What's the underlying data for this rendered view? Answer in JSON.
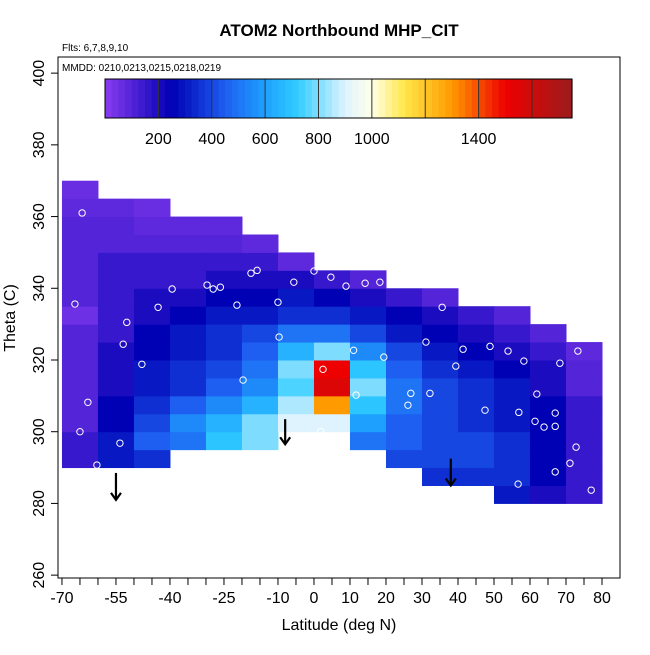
{
  "chart_data": {
    "type": "heatmap",
    "title": "ATOM2 Northbound MHP_CIT",
    "subtitle": "Flts: 6,7,8,9,10",
    "annotation": "MMDD: 0210,0213,0215,0218,0219",
    "x_label": "Latitude (deg N)",
    "y_label": "Theta (C)",
    "xlim": [
      -71.1,
      85
    ],
    "ylim": [
      259.2,
      404.5
    ],
    "xticks": [
      -70,
      -55,
      -40,
      -25,
      -10,
      0,
      10,
      20,
      30,
      40,
      50,
      60,
      70,
      80
    ],
    "xminor_ticks": [
      -65,
      -60,
      -50,
      -45,
      -35,
      -30,
      -20,
      -15,
      -5,
      5,
      15,
      25,
      35,
      45,
      55,
      65,
      75
    ],
    "yticks": [
      260,
      280,
      300,
      320,
      340,
      360,
      380,
      400
    ],
    "x": [
      -70,
      -60,
      -50,
      -40,
      -30,
      -20,
      -10,
      0,
      10,
      20,
      30,
      40,
      50,
      60,
      70,
      80
    ],
    "y": [
      280,
      285,
      290,
      295,
      300,
      305,
      310,
      315,
      320,
      325,
      330,
      335,
      340,
      345,
      350,
      355,
      360,
      365,
      370
    ],
    "z": [
      [
        null,
        null,
        null,
        null,
        null,
        null,
        null,
        null,
        null,
        null,
        null,
        null,
        300,
        200,
        150
      ],
      [
        null,
        null,
        null,
        null,
        null,
        null,
        null,
        null,
        null,
        null,
        350,
        350,
        350,
        250,
        150
      ],
      [
        150,
        300,
        350,
        null,
        null,
        null,
        null,
        null,
        null,
        400,
        400,
        400,
        350,
        250,
        150
      ],
      [
        150,
        300,
        450,
        500,
        700,
        800,
        null,
        null,
        500,
        450,
        400,
        400,
        350,
        250,
        150
      ],
      [
        100,
        250,
        400,
        550,
        650,
        800,
        900,
        900,
        600,
        450,
        400,
        350,
        300,
        250,
        150
      ],
      [
        100,
        250,
        350,
        450,
        550,
        650,
        850,
        1300,
        700,
        500,
        400,
        350,
        300,
        250,
        150
      ],
      [
        100,
        200,
        300,
        350,
        450,
        550,
        750,
        1550,
        800,
        500,
        400,
        350,
        300,
        200,
        100
      ],
      [
        100,
        200,
        300,
        350,
        400,
        500,
        800,
        1500,
        700,
        450,
        350,
        300,
        250,
        200,
        100
      ],
      [
        100,
        200,
        250,
        300,
        350,
        450,
        650,
        800,
        550,
        400,
        300,
        250,
        200,
        150,
        80
      ],
      [
        100,
        150,
        250,
        300,
        350,
        400,
        500,
        500,
        400,
        300,
        250,
        200,
        150,
        100,
        null
      ],
      [
        50,
        150,
        200,
        250,
        300,
        300,
        350,
        350,
        300,
        250,
        200,
        150,
        100,
        null,
        null
      ],
      [
        100,
        150,
        200,
        200,
        250,
        250,
        300,
        250,
        200,
        150,
        100,
        null,
        null,
        null,
        null
      ],
      [
        100,
        150,
        150,
        150,
        200,
        200,
        200,
        150,
        100,
        null,
        null,
        null,
        null,
        null,
        null
      ],
      [
        100,
        150,
        150,
        150,
        150,
        150,
        80,
        null,
        null,
        null,
        null,
        null,
        null,
        null,
        null
      ],
      [
        100,
        100,
        100,
        100,
        100,
        80,
        null,
        null,
        null,
        null,
        null,
        null,
        null,
        null,
        null
      ],
      [
        100,
        100,
        80,
        80,
        80,
        null,
        null,
        null,
        null,
        null,
        null,
        null,
        null,
        null,
        null
      ],
      [
        80,
        80,
        60,
        null,
        null,
        null,
        null,
        null,
        null,
        null,
        null,
        null,
        null,
        null,
        null
      ],
      [
        60,
        null,
        null,
        null,
        null,
        null,
        null,
        null,
        null,
        null,
        null,
        null,
        null,
        null,
        null
      ]
    ],
    "colorbar": {
      "lim": [
        0,
        1750
      ],
      "ticks": [
        200,
        400,
        600,
        800,
        1000,
        1400
      ],
      "lines": [
        200,
        400,
        600,
        800,
        1000,
        1200,
        1400,
        1600
      ]
    },
    "colormap": [
      {
        "value": 0,
        "color": "#8a3cf0"
      },
      {
        "value": 250,
        "color": "#0000b4"
      },
      {
        "value": 450,
        "color": "#1e5ef0"
      },
      {
        "value": 600,
        "color": "#1ea0ff"
      },
      {
        "value": 720,
        "color": "#30ccff"
      },
      {
        "value": 900,
        "color": "#dff3ff"
      },
      {
        "value": 1000,
        "color": "#ffffe8"
      },
      {
        "value": 1120,
        "color": "#ffe84a"
      },
      {
        "value": 1300,
        "color": "#ff9a00"
      },
      {
        "value": 1500,
        "color": "#ee0000"
      },
      {
        "value": 1750,
        "color": "#9b1c1c"
      }
    ],
    "points": {
      "color": "#ffffff",
      "x": [
        -64.4,
        -66.4,
        -62.8,
        -65,
        -60.3,
        -53.9,
        -52,
        -53,
        -47.8,
        -43.3,
        -39.4,
        -29.7,
        -28,
        -26,
        -21.4,
        -17.5,
        -15.8,
        -19.7,
        -10,
        -9.7,
        -5.6,
        0,
        4.7,
        2.5,
        8.9,
        14.2,
        18.3,
        11,
        11.7,
        19.4,
        1.9,
        6.9,
        31.1,
        35.6,
        41.4,
        39.4,
        26.9,
        26.1,
        32.2,
        47.5,
        48.9,
        53.9,
        56.9,
        58.3,
        56.7,
        61.4,
        61.9,
        63.9,
        67,
        67,
        68.3,
        73.3,
        71.1,
        72.8,
        67,
        77
      ],
      "y": [
        361,
        335.6,
        308.2,
        300,
        290.7,
        296.8,
        330.5,
        324.4,
        318.8,
        334.7,
        339.8,
        340.9,
        339.8,
        340.3,
        335.3,
        344.2,
        345,
        314.4,
        336.1,
        326.4,
        341.7,
        344.8,
        343.1,
        317.4,
        340.6,
        341.4,
        341.7,
        322.7,
        310.2,
        320.8,
        300,
        297.4,
        325,
        334.7,
        323,
        318.3,
        310.7,
        307.4,
        310.7,
        306,
        323.8,
        322.5,
        305.4,
        319.7,
        285.4,
        302.9,
        310.5,
        301.3,
        305.2,
        301.5,
        319.1,
        322.5,
        291.2,
        295.7,
        288.8,
        283.7
      ]
    },
    "arrows": {
      "x": [
        -55,
        -8,
        38
      ],
      "y_top": [
        288.5,
        303.5,
        292.5
      ],
      "y_bottom": [
        281,
        296.5,
        285
      ]
    }
  }
}
